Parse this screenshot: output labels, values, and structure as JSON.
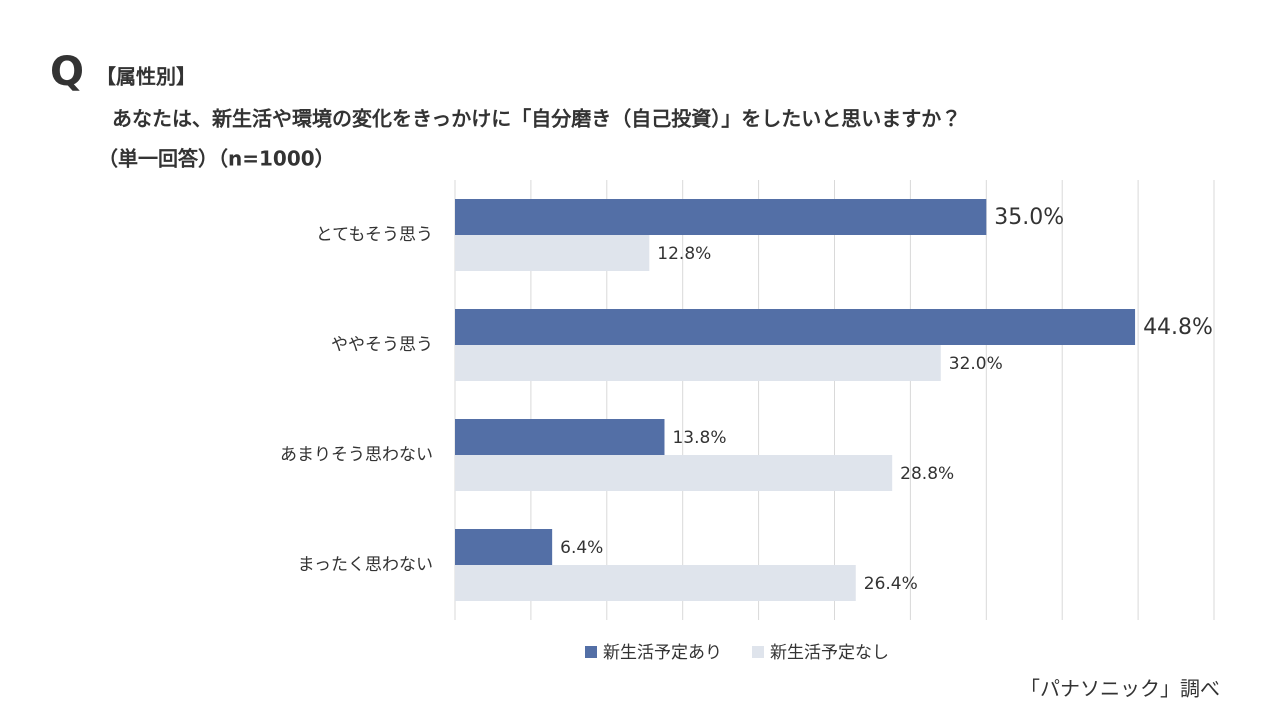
{
  "chart_data": {
    "type": "hbar",
    "q_mark": "Q",
    "subtitle": "【属性別】",
    "title": "あなたは、新生活や環境の変化をきっかけに「自分磨き（自己投資）」をしたいと思いますか？",
    "note": "（単一回答）（n=1000）",
    "categories": [
      "とてもそう思う",
      "ややそう思う",
      "あまりそう思わない",
      "まったく思わない"
    ],
    "series": [
      {
        "name": "新生活予定あり",
        "color": "#536fa6",
        "values": [
          35.0,
          44.8,
          13.8,
          6.4
        ],
        "value_labels": [
          "35.0%",
          "44.8%",
          "13.8%",
          "6.4%"
        ]
      },
      {
        "name": "新生活予定なし",
        "color": "#dfe4ec",
        "values": [
          12.8,
          32.0,
          28.8,
          26.4
        ],
        "value_labels": [
          "12.8%",
          "32.0%",
          "28.8%",
          "26.4%"
        ]
      }
    ],
    "xlim": [
      0,
      50
    ],
    "xticks": [
      0,
      5,
      10,
      15,
      20,
      25,
      30,
      35,
      40,
      45,
      50
    ],
    "grid": true,
    "source": "「パナソニック」調べ"
  }
}
